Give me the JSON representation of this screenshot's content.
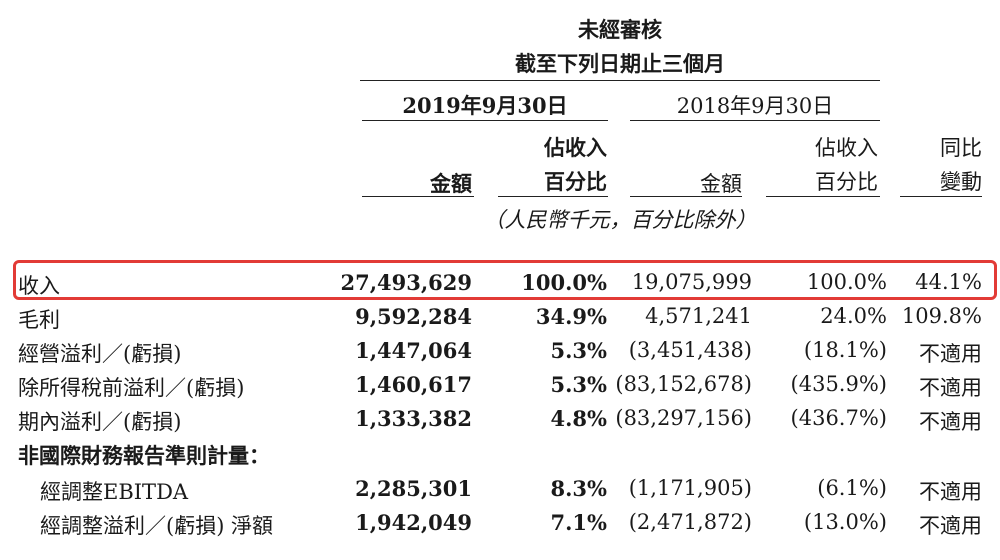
{
  "header": {
    "title": "未經審核",
    "period": "截至下列日期止三個月",
    "col_2019": "2019年9月30日",
    "col_2018": "2018年9月30日",
    "amount_label": "金額",
    "pct_label_line1": "佔收入",
    "pct_label_line2": "百分比",
    "yoy_line1": "同比",
    "yoy_line2": "變動",
    "unit_note": "（人民幣千元，百分比除外）"
  },
  "rows": [
    {
      "label": "收入",
      "amt2019": "27,493,629",
      "pct2019": "100.0%",
      "amt2018": "19,075,999",
      "pct2018": "100.0%",
      "yoy": "44.1%"
    },
    {
      "label": "毛利",
      "amt2019": "9,592,284",
      "pct2019": "34.9%",
      "amt2018": "4,571,241",
      "pct2018": "24.0%",
      "yoy": "109.8%"
    },
    {
      "label": "經營溢利／(虧損)",
      "amt2019": "1,447,064",
      "pct2019": "5.3%",
      "amt2018": "(3,451,438)",
      "pct2018": "(18.1%)",
      "yoy": "不適用"
    },
    {
      "label": "除所得稅前溢利／(虧損)",
      "amt2019": "1,460,617",
      "pct2019": "5.3%",
      "amt2018": "(83,152,678)",
      "pct2018": "(435.9%)",
      "yoy": "不適用"
    },
    {
      "label": "期內溢利／(虧損)",
      "amt2019": "1,333,382",
      "pct2019": "4.8%",
      "amt2018": "(83,297,156)",
      "pct2018": "(436.7%)",
      "yoy": "不適用"
    },
    {
      "label": "非國際財務報告準則計量："
    },
    {
      "label": "經調整EBITDA",
      "amt2019": "2,285,301",
      "pct2019": "8.3%",
      "amt2018": "(1,171,905)",
      "pct2018": "(6.1%)",
      "yoy": "不適用"
    },
    {
      "label": "經調整溢利／(虧損) 淨額",
      "amt2019": "1,942,049",
      "pct2019": "7.1%",
      "amt2018": "(2,471,872)",
      "pct2018": "(13.0%)",
      "yoy": "不適用"
    }
  ],
  "highlight_color": "#e23b36"
}
